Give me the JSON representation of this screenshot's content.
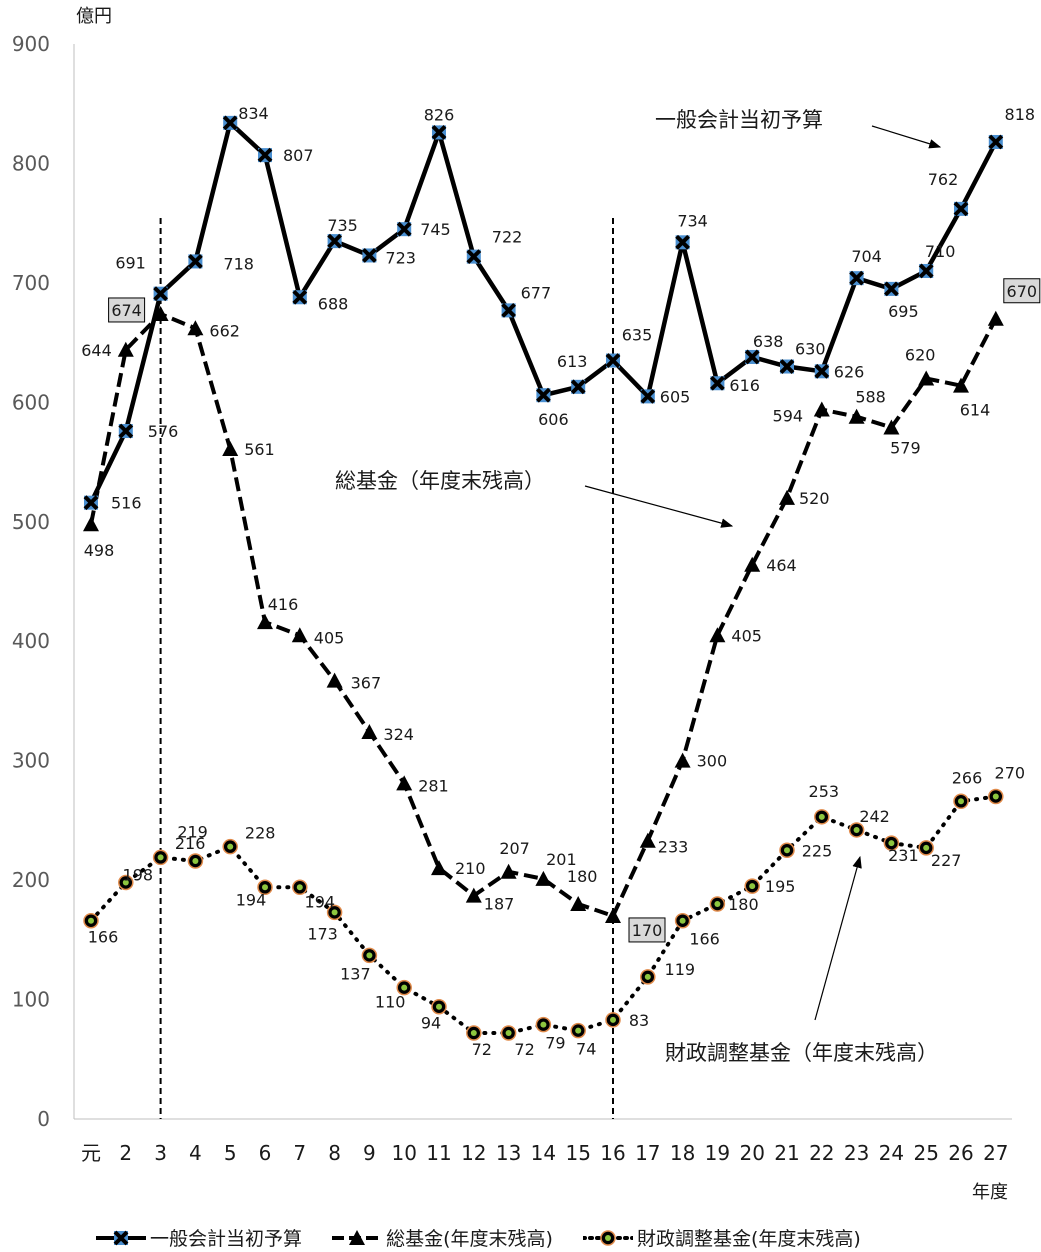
{
  "chart_data": {
    "type": "line",
    "ylabel": "億円",
    "xlabel": "年度",
    "ylim": [
      0,
      900
    ],
    "yticks": [
      0,
      100,
      200,
      300,
      400,
      500,
      600,
      700,
      800,
      900
    ],
    "categories": [
      "元",
      "2",
      "3",
      "4",
      "5",
      "6",
      "7",
      "8",
      "9",
      "10",
      "11",
      "12",
      "13",
      "14",
      "15",
      "16",
      "17",
      "18",
      "19",
      "20",
      "21",
      "22",
      "23",
      "24",
      "25",
      "26",
      "27"
    ],
    "series": [
      {
        "name": "一般会計当初予算",
        "values": [
          516,
          576,
          691,
          718,
          834,
          807,
          688,
          735,
          723,
          745,
          826,
          722,
          677,
          606,
          613,
          635,
          605,
          734,
          616,
          638,
          630,
          626,
          704,
          695,
          710,
          762,
          818
        ]
      },
      {
        "name": "総基金（年度末残高）",
        "values": [
          498,
          644,
          674,
          662,
          561,
          416,
          405,
          367,
          324,
          281,
          210,
          187,
          207,
          201,
          180,
          170,
          233,
          300,
          405,
          464,
          520,
          594,
          588,
          579,
          620,
          614,
          670
        ]
      },
      {
        "name": "財政調整基金（年度末残高）",
        "values": [
          166,
          198,
          219,
          216,
          228,
          194,
          194,
          173,
          137,
          110,
          94,
          72,
          72,
          79,
          74,
          83,
          119,
          166,
          180,
          195,
          225,
          253,
          242,
          231,
          227,
          266,
          270
        ]
      }
    ],
    "annotations": [
      "一般会計当初予算",
      "総基金（年度末残高）",
      "財政調整基金（年度末残高）"
    ],
    "boxed_labels": [
      "674",
      "170",
      "670"
    ],
    "reference_lines_at": [
      "3",
      "16"
    ],
    "legend_position": "bottom"
  },
  "legend": {
    "items": [
      "一般会計当初予算",
      "総基金(年度末残高)",
      "財政調整基金(年度末残高)"
    ]
  },
  "colors": {
    "line": "#000000",
    "marker_blue": "#4a8fd0",
    "marker_green": "#8dc63f",
    "marker_ring": "#e08a4a",
    "box_fill": "#d9d9d9"
  }
}
